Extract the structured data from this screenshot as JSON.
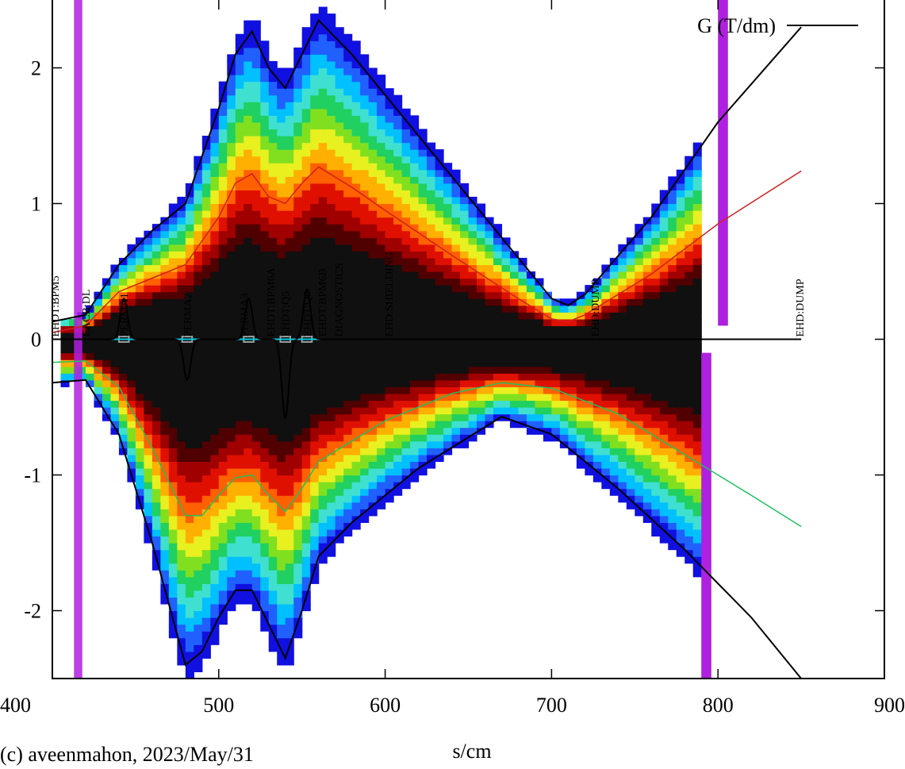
{
  "chart_data": {
    "type": "heatmap",
    "xlabel": "s/cm",
    "credit": "(c) aveenmahon, 2023/May/31",
    "xlim": [
      400,
      900
    ],
    "ylim": [
      -2.5,
      2.5
    ],
    "x_ticks": [
      400,
      500,
      600,
      700,
      800,
      900
    ],
    "y_ticks": [
      -2,
      -1,
      0,
      1,
      2
    ],
    "grid": false,
    "legend": {
      "position": "top-right",
      "label": "G (T/dm)",
      "color": "#000000"
    },
    "colors": {
      "heat_scale": [
        "#1010e0",
        "#2060ff",
        "#00c0ff",
        "#40e0d0",
        "#20d060",
        "#80e020",
        "#e8f020",
        "#ffb000",
        "#ff6000",
        "#e01000",
        "#a00000",
        "#500000",
        "#101010"
      ],
      "outer_fringe": "#b020e0",
      "envelope_outer": "#000000",
      "envelope_inner_top": "#d02020",
      "envelope_inner_bottom": "#20c060",
      "gradient_curve": "#000000",
      "beamline_axis": "#00c8e0"
    },
    "element_labels": [
      {
        "s": 400,
        "label": "EHDT:BPM5"
      },
      {
        "s": 420,
        "label": "EACB:DL"
      },
      {
        "s": 443,
        "label": "PERMA1"
      },
      {
        "s": 481,
        "label": "PERMA2"
      },
      {
        "s": 515,
        "label": "PERMA3"
      },
      {
        "s": 531,
        "label": "EHDT:BPM6A"
      },
      {
        "s": 540,
        "label": "EHDT:Q5"
      },
      {
        "s": 553,
        "label": "EHDT:Q6"
      },
      {
        "s": 562,
        "label": "EHDT:BPM6B"
      },
      {
        "s": 572,
        "label": "DIAGNOSTICS"
      },
      {
        "s": 602,
        "label": "EHD:SHIELDING"
      },
      {
        "s": 726,
        "label": "EHD:DUMP"
      },
      {
        "s": 849,
        "label": "EHD:DUMP"
      }
    ],
    "series": [
      {
        "type": "line",
        "x": [
          400,
          420,
          440,
          460,
          480,
          500,
          510,
          520,
          530,
          540,
          550,
          560,
          580,
          600,
          640,
          680,
          700,
          710,
          720,
          760,
          800,
          850
        ],
        "y": [
          0.13,
          0.18,
          0.55,
          0.8,
          1.0,
          1.7,
          2.1,
          2.27,
          2.0,
          1.85,
          2.1,
          2.35,
          2.1,
          1.8,
          1.2,
          0.6,
          0.3,
          0.25,
          0.33,
          0.9,
          1.6,
          2.3
        ]
      },
      {
        "type": "line",
        "x": [
          400,
          420,
          440,
          460,
          480,
          500,
          510,
          520,
          530,
          540,
          550,
          560,
          580,
          600,
          640,
          680,
          700,
          710,
          720,
          760,
          800,
          850
        ],
        "y": [
          0.05,
          0.1,
          0.35,
          0.45,
          0.55,
          0.9,
          1.15,
          1.22,
          1.05,
          1.0,
          1.15,
          1.27,
          1.12,
          0.95,
          0.62,
          0.3,
          0.15,
          0.13,
          0.18,
          0.48,
          0.85,
          1.24
        ]
      },
      {
        "type": "line",
        "x": [
          400,
          420,
          440,
          460,
          480,
          490,
          500,
          510,
          520,
          530,
          540,
          550,
          560,
          580,
          600,
          640,
          670,
          700,
          740,
          780,
          820,
          850
        ],
        "y": [
          -0.17,
          -0.16,
          -0.35,
          -0.8,
          -1.3,
          -1.3,
          -1.15,
          -1.02,
          -1.0,
          -1.15,
          -1.27,
          -1.1,
          -0.9,
          -0.75,
          -0.6,
          -0.4,
          -0.32,
          -0.36,
          -0.55,
          -0.85,
          -1.15,
          -1.38
        ]
      },
      {
        "type": "line",
        "x": [
          400,
          420,
          440,
          460,
          470,
          480,
          490,
          500,
          510,
          520,
          530,
          540,
          550,
          560,
          580,
          620,
          670,
          700,
          740,
          780,
          820,
          850
        ],
        "y": [
          -0.32,
          -0.3,
          -0.7,
          -1.5,
          -1.95,
          -2.4,
          -2.3,
          -2.05,
          -1.85,
          -1.85,
          -2.1,
          -2.35,
          -2.0,
          -1.6,
          -1.35,
          -0.95,
          -0.57,
          -0.7,
          -1.1,
          -1.55,
          -2.05,
          -2.5
        ]
      },
      {
        "type": "gradient",
        "peaks": [
          {
            "s": 443,
            "g": 0.3,
            "width": 3
          },
          {
            "s": 481,
            "g": -0.3,
            "width": 3
          },
          {
            "s": 518,
            "g": 0.3,
            "width": 3
          },
          {
            "s": 540,
            "g": -0.58,
            "width": 3
          },
          {
            "s": 553,
            "g": 0.37,
            "width": 3
          }
        ]
      }
    ]
  }
}
